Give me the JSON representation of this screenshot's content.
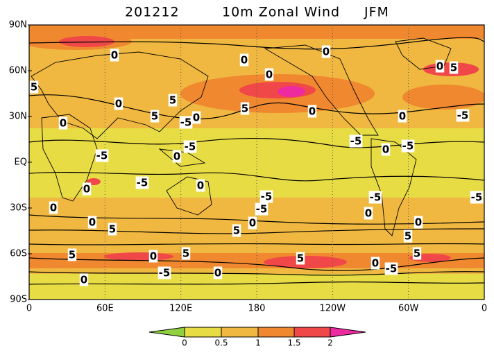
{
  "header": {
    "date": "201212",
    "variable": "10m Zonal Wind",
    "season": "JFM"
  },
  "latitude_labels": [
    "90N",
    "60N",
    "30N",
    "EQ",
    "30S",
    "60S",
    "90S"
  ],
  "longitude_labels": [
    "0",
    "60E",
    "120E",
    "180",
    "120W",
    "60W",
    "0"
  ],
  "colorbar": {
    "levels": [
      0,
      0.5,
      1,
      1.5,
      2
    ]
  },
  "contour_labels": [
    0,
    0,
    0,
    0,
    5,
    0,
    5,
    5,
    5,
    0,
    0,
    -5,
    0,
    0,
    -5,
    -5,
    -5,
    0,
    -5,
    0,
    -5,
    -5,
    0,
    0,
    -5,
    -5,
    -5,
    0,
    -5,
    0,
    0,
    5,
    0,
    0,
    5,
    5,
    5,
    0,
    5,
    5,
    5,
    0,
    -5,
    -5,
    0,
    0,
    5,
    0
  ]
}
